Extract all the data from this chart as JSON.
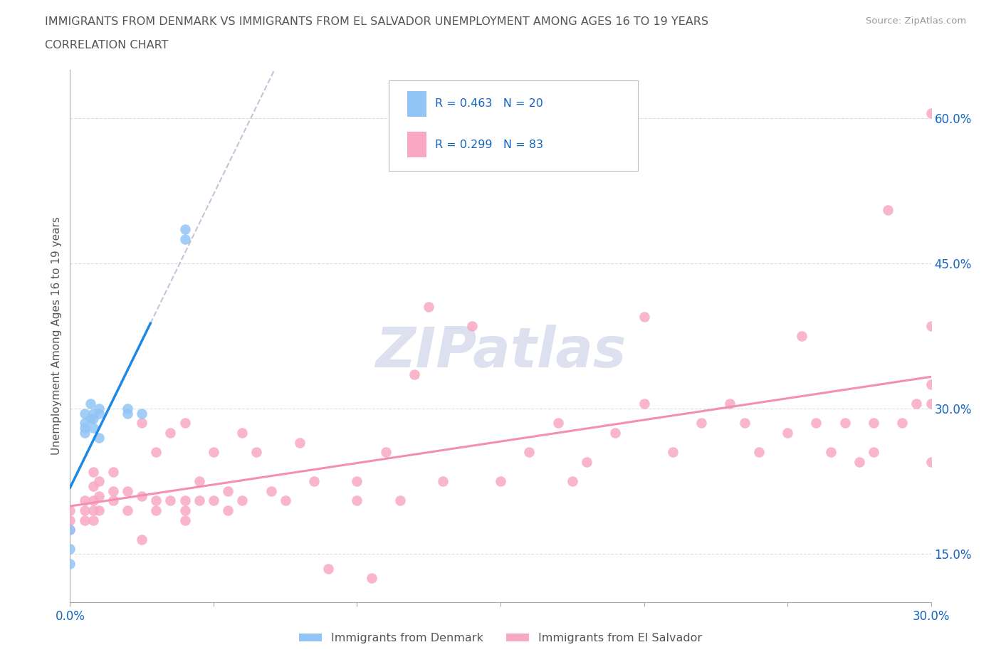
{
  "title_line1": "IMMIGRANTS FROM DENMARK VS IMMIGRANTS FROM EL SALVADOR UNEMPLOYMENT AMONG AGES 16 TO 19 YEARS",
  "title_line2": "CORRELATION CHART",
  "source_text": "Source: ZipAtlas.com",
  "watermark": "ZIPatlas",
  "denmark_R": "0.463",
  "denmark_N": "20",
  "elsalvador_R": "0.299",
  "elsalvador_N": "83",
  "denmark_color": "#92C5F5",
  "elsalvador_color": "#F9A8C4",
  "denmark_line_color": "#1E88E5",
  "elsalvador_line_color": "#F48FB1",
  "legend_text_color": "#1565C0",
  "title_color": "#555555",
  "axis_label_color": "#1565C0",
  "xlim": [
    0.0,
    0.3
  ],
  "ylim": [
    0.1,
    0.65
  ],
  "denmark_scatter_x": [
    0.0,
    0.0,
    0.0,
    0.005,
    0.005,
    0.005,
    0.005,
    0.007,
    0.007,
    0.008,
    0.008,
    0.008,
    0.01,
    0.01,
    0.01,
    0.02,
    0.02,
    0.025,
    0.04,
    0.04
  ],
  "denmark_scatter_y": [
    0.155,
    0.175,
    0.14,
    0.28,
    0.275,
    0.285,
    0.295,
    0.29,
    0.305,
    0.28,
    0.29,
    0.295,
    0.3,
    0.295,
    0.27,
    0.3,
    0.295,
    0.295,
    0.475,
    0.485
  ],
  "elsalvador_scatter_x": [
    0.0,
    0.0,
    0.0,
    0.005,
    0.005,
    0.005,
    0.008,
    0.008,
    0.008,
    0.008,
    0.008,
    0.01,
    0.01,
    0.01,
    0.015,
    0.015,
    0.015,
    0.02,
    0.02,
    0.025,
    0.025,
    0.025,
    0.03,
    0.03,
    0.03,
    0.035,
    0.035,
    0.04,
    0.04,
    0.04,
    0.04,
    0.045,
    0.045,
    0.05,
    0.05,
    0.055,
    0.055,
    0.06,
    0.06,
    0.065,
    0.07,
    0.075,
    0.08,
    0.085,
    0.09,
    0.1,
    0.1,
    0.105,
    0.11,
    0.115,
    0.12,
    0.125,
    0.13,
    0.14,
    0.15,
    0.16,
    0.17,
    0.175,
    0.18,
    0.19,
    0.2,
    0.2,
    0.21,
    0.22,
    0.23,
    0.235,
    0.24,
    0.25,
    0.255,
    0.26,
    0.265,
    0.27,
    0.275,
    0.28,
    0.28,
    0.285,
    0.29,
    0.295,
    0.3,
    0.3,
    0.3,
    0.3,
    0.3
  ],
  "elsalvador_scatter_y": [
    0.175,
    0.185,
    0.195,
    0.185,
    0.195,
    0.205,
    0.185,
    0.195,
    0.205,
    0.22,
    0.235,
    0.195,
    0.21,
    0.225,
    0.205,
    0.215,
    0.235,
    0.195,
    0.215,
    0.165,
    0.21,
    0.285,
    0.195,
    0.205,
    0.255,
    0.205,
    0.275,
    0.185,
    0.195,
    0.205,
    0.285,
    0.205,
    0.225,
    0.205,
    0.255,
    0.195,
    0.215,
    0.205,
    0.275,
    0.255,
    0.215,
    0.205,
    0.265,
    0.225,
    0.135,
    0.205,
    0.225,
    0.125,
    0.255,
    0.205,
    0.335,
    0.405,
    0.225,
    0.385,
    0.225,
    0.255,
    0.285,
    0.225,
    0.245,
    0.275,
    0.305,
    0.395,
    0.255,
    0.285,
    0.305,
    0.285,
    0.255,
    0.275,
    0.375,
    0.285,
    0.255,
    0.285,
    0.245,
    0.255,
    0.285,
    0.505,
    0.285,
    0.305,
    0.305,
    0.325,
    0.385,
    0.605,
    0.245
  ]
}
